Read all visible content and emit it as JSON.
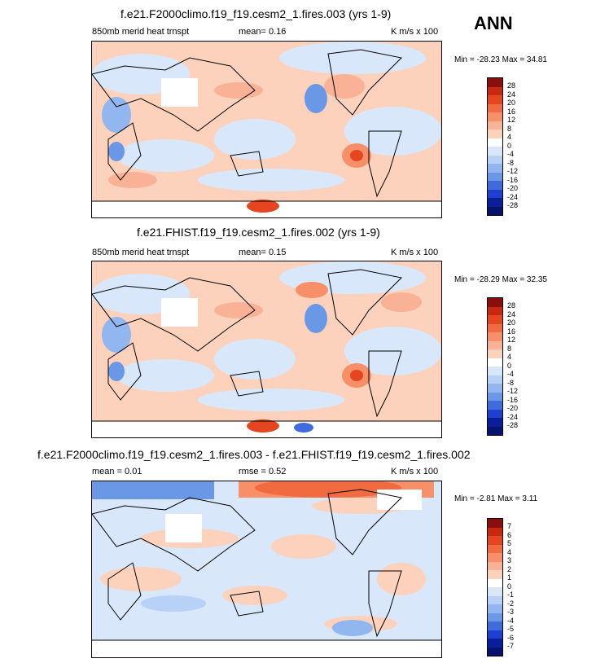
{
  "season": "ANN",
  "panels": [
    {
      "title": "f.e21.F2000climo.f19_f19.cesm2_1.fires.003 (yrs 1-9)",
      "variable": "850mb merid heat trnspt",
      "stat1": "mean=  0.16",
      "stat2": "",
      "units": "K m/s x 100",
      "minmax": "Min = -28.23 Max =  34.81",
      "levels": [
        "28",
        "24",
        "20",
        "16",
        "12",
        "8",
        "4",
        "0",
        "-4",
        "-8",
        "-12",
        "-16",
        "-20",
        "-24",
        "-28"
      ],
      "colors": [
        "#8c0d0d",
        "#c8280e",
        "#e6461f",
        "#f26a3f",
        "#f79068",
        "#fab296",
        "#fdd2bd",
        "#ffffff",
        "#d9e7fb",
        "#b7d1f7",
        "#92b7f0",
        "#6b98e6",
        "#3f6bdc",
        "#1e3fd0",
        "#0a1e9c",
        "#06126e"
      ]
    },
    {
      "title": "f.e21.FHIST.f19_f19.cesm2_1.fires.002 (yrs 1-9)",
      "variable": "850mb merid heat trnspt",
      "stat1": "mean=  0.15",
      "stat2": "",
      "units": "K m/s x 100",
      "minmax": "Min = -28.29 Max =  32.35",
      "levels": [
        "28",
        "24",
        "20",
        "16",
        "12",
        "8",
        "4",
        "0",
        "-4",
        "-8",
        "-12",
        "-16",
        "-20",
        "-24",
        "-28"
      ],
      "colors": [
        "#8c0d0d",
        "#c8280e",
        "#e6461f",
        "#f26a3f",
        "#f79068",
        "#fab296",
        "#fdd2bd",
        "#ffffff",
        "#d9e7fb",
        "#b7d1f7",
        "#92b7f0",
        "#6b98e6",
        "#3f6bdc",
        "#1e3fd0",
        "#0a1e9c",
        "#06126e"
      ]
    },
    {
      "title": "f.e21.F2000climo.f19_f19.cesm2_1.fires.003 - f.e21.FHIST.f19_f19.cesm2_1.fires.002",
      "variable": "",
      "stat1": "mean =  0.01",
      "stat2": "rmse =  0.52",
      "units": "K m/s x 100",
      "minmax": "Min =  -2.81 Max =   3.11",
      "levels": [
        "7",
        "6",
        "5",
        "4",
        "3",
        "2",
        "1",
        "0",
        "-1",
        "-2",
        "-3",
        "-4",
        "-5",
        "-6",
        "-7"
      ],
      "colors": [
        "#8c0d0d",
        "#c8280e",
        "#e6461f",
        "#f26a3f",
        "#f79068",
        "#fab296",
        "#fdd2bd",
        "#ffffff",
        "#d9e7fb",
        "#b7d1f7",
        "#92b7f0",
        "#6b98e6",
        "#3f6bdc",
        "#1e3fd0",
        "#0a1e9c",
        "#06126e"
      ]
    }
  ]
}
